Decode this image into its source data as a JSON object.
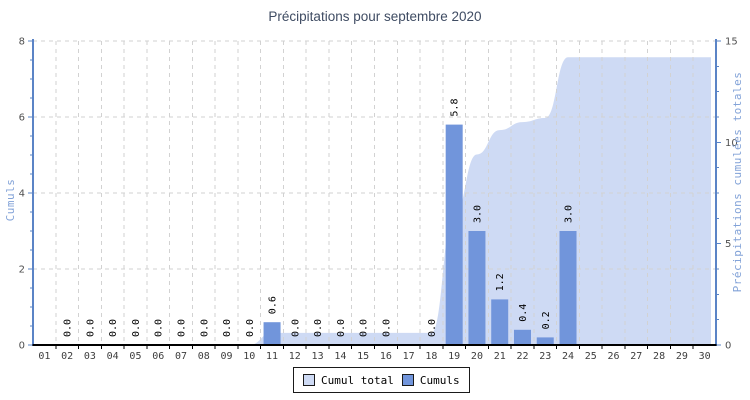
{
  "title": "Précipitations pour septembre 2020",
  "colors": {
    "bar": "#7195db",
    "area": "#cedaf4",
    "grid": "#d2d2d2",
    "axis_blue": "#5b84c6",
    "axis_black": "#000000",
    "title_text": "#3f4c63",
    "tick_text": "#4f4f4f",
    "bar_label_text": "#000000",
    "axis_title_text": "#83a3d8",
    "legend_border": "#1a1a1a"
  },
  "legend": {
    "items": [
      {
        "label": "Cumul total",
        "color": "#cedaf4"
      },
      {
        "label": "Cumuls",
        "color": "#7195db"
      }
    ]
  },
  "chart_data": {
    "type": "bar",
    "title": "Précipitations pour septembre 2020",
    "categories": [
      "01",
      "02",
      "03",
      "04",
      "05",
      "06",
      "07",
      "08",
      "09",
      "10",
      "11",
      "12",
      "13",
      "14",
      "15",
      "16",
      "17",
      "18",
      "19",
      "20",
      "21",
      "22",
      "23",
      "24",
      "25",
      "26",
      "27",
      "28",
      "29",
      "30"
    ],
    "series": [
      {
        "name": "Cumul total",
        "type": "area",
        "yaxis": "right",
        "values": [
          0,
          0,
          0,
          0,
          0,
          0,
          0,
          0,
          0,
          0,
          0.6,
          0.6,
          0.6,
          0.6,
          0.6,
          0.6,
          0.6,
          0.6,
          6.4,
          9.4,
          10.6,
          11.0,
          11.2,
          14.2,
          14.2,
          14.2,
          14.2,
          14.2,
          14.2,
          14.2
        ]
      },
      {
        "name": "Cumuls",
        "type": "bar",
        "yaxis": "left",
        "values": [
          null,
          0,
          0,
          0,
          0,
          0,
          0,
          0,
          0,
          0,
          0.6,
          0,
          0,
          0,
          0,
          0,
          null,
          0,
          5.8,
          3.0,
          1.2,
          0.4,
          0.2,
          3.0,
          null,
          null,
          null,
          null,
          null,
          null
        ]
      }
    ],
    "left_axis": {
      "title": "Cumuls",
      "min": 0,
      "max": 8,
      "major_ticks": [
        0,
        2,
        4,
        6,
        8
      ],
      "minor_step": 0.5
    },
    "right_axis": {
      "title": "Précipitations cumulées totales",
      "min": 0,
      "max": 15,
      "major_ticks": [
        0,
        5,
        10,
        15
      ],
      "minor_step": 1.25
    },
    "grid": "dashed",
    "legend_position": "bottom",
    "bar_value_labels": true
  }
}
